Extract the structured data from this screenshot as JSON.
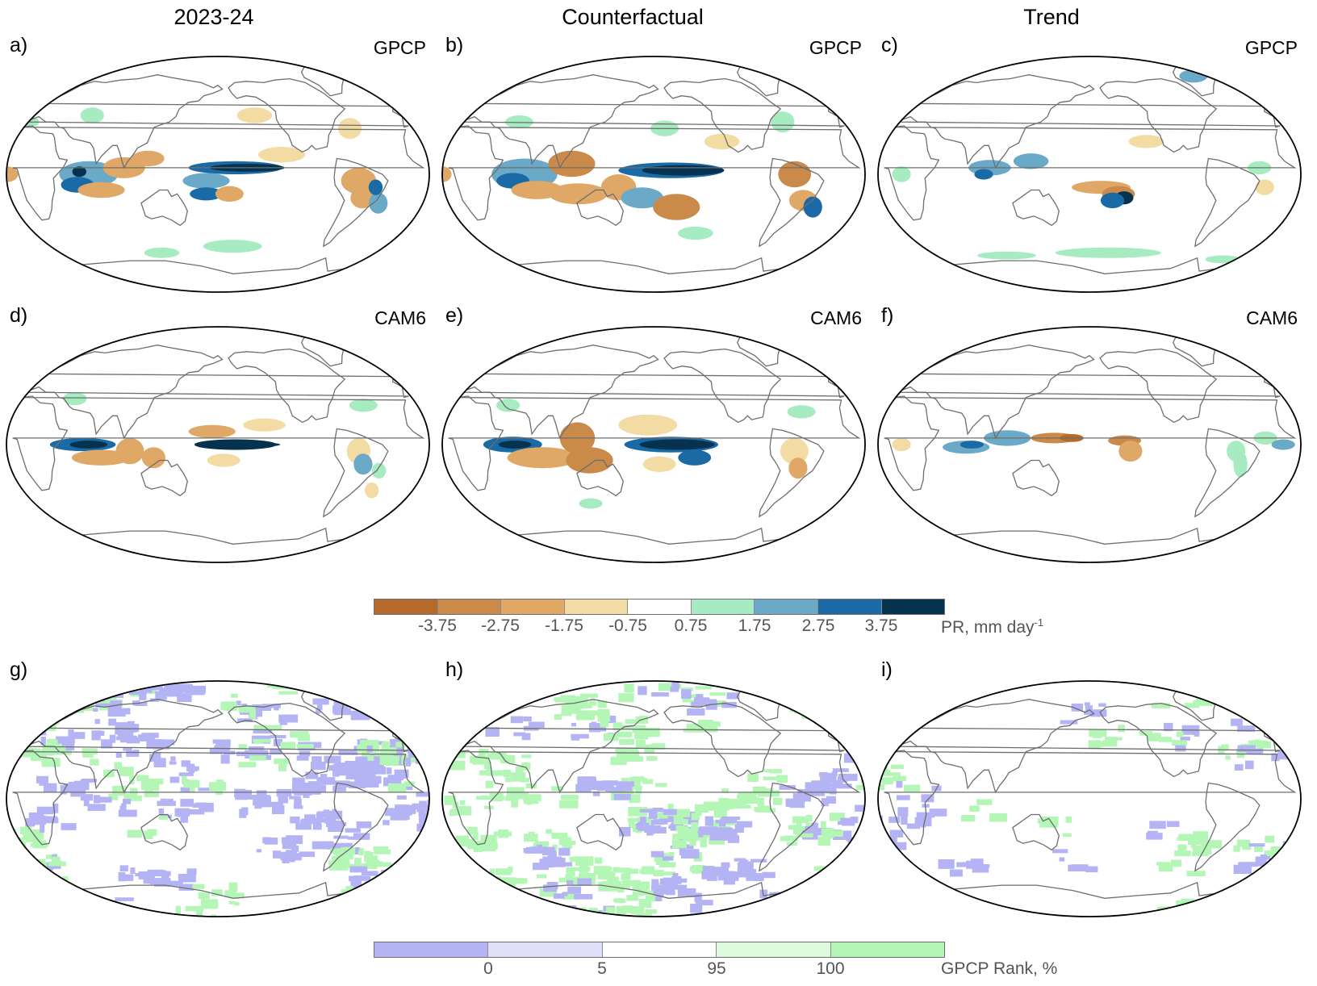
{
  "columns": [
    "2023-24",
    "Counterfactual",
    "Trend"
  ],
  "panels": [
    {
      "letter": "a)",
      "source": "GPCP",
      "kind": "precip",
      "variant": "obs"
    },
    {
      "letter": "b)",
      "source": "GPCP",
      "kind": "precip",
      "variant": "cf"
    },
    {
      "letter": "c)",
      "source": "GPCP",
      "kind": "precip",
      "variant": "trend"
    },
    {
      "letter": "d)",
      "source": "CAM6",
      "kind": "precip",
      "variant": "model"
    },
    {
      "letter": "e)",
      "source": "CAM6",
      "kind": "precip",
      "variant": "modelcf"
    },
    {
      "letter": "f)",
      "source": "CAM6",
      "kind": "precip",
      "variant": "modeltrend"
    },
    {
      "letter": "g)",
      "source": "",
      "kind": "rank",
      "variant": "r1"
    },
    {
      "letter": "h)",
      "source": "",
      "kind": "rank",
      "variant": "r2"
    },
    {
      "letter": "i)",
      "source": "",
      "kind": "rank",
      "variant": "r3"
    }
  ],
  "precip_colorbar": {
    "colors": [
      "#b36a2b",
      "#c98a4a",
      "#dfa867",
      "#f3dca3",
      "#ffffff",
      "#a6ecc0",
      "#6aaac8",
      "#1a6aa6",
      "#05324f"
    ],
    "ticks": [
      "-3.75",
      "-2.75",
      "-1.75",
      "-0.75",
      "0.75",
      "1.75",
      "2.75",
      "3.75"
    ],
    "label": "PR, mm day",
    "label_sup": "-1"
  },
  "rank_colorbar": {
    "colors": [
      "#b4b4f4",
      "#e0e0fb",
      "#ffffff",
      "#dcfbdc",
      "#b4f6b6"
    ],
    "ticks": [
      "0",
      "5",
      "95",
      "100"
    ],
    "label": "GPCP Rank, %"
  }
}
